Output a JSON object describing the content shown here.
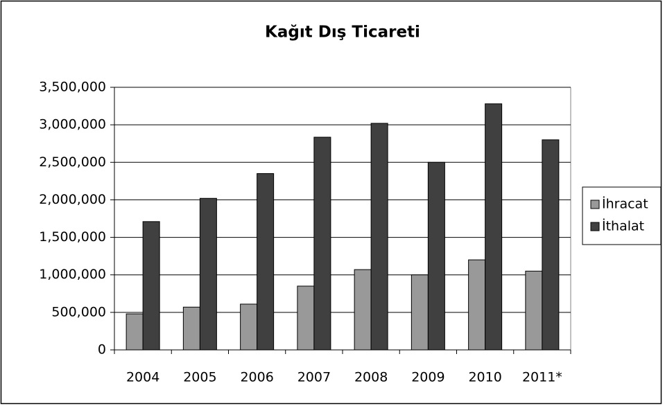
{
  "chart_data": {
    "type": "bar",
    "title": "Kağıt Dış Ticareti",
    "categories": [
      "2004",
      "2005",
      "2006",
      "2007",
      "2008",
      "2009",
      "2010",
      "2011*"
    ],
    "series": [
      {
        "name": "İhracat",
        "color": "#999999",
        "values": [
          480000,
          570000,
          610000,
          850000,
          1070000,
          1000000,
          1200000,
          1050000
        ]
      },
      {
        "name": "İthalat",
        "color": "#404040",
        "values": [
          1710000,
          2020000,
          2350000,
          2835000,
          3020000,
          2500000,
          3280000,
          2800000
        ]
      }
    ],
    "ylim": [
      0,
      3500000
    ],
    "yticks": [
      {
        "value": 0,
        "label": "0"
      },
      {
        "value": 500000,
        "label": "500,000"
      },
      {
        "value": 1000000,
        "label": "1,000,000"
      },
      {
        "value": 1500000,
        "label": "1,500,000"
      },
      {
        "value": 2000000,
        "label": "2,000,000"
      },
      {
        "value": 2500000,
        "label": "2,500,000"
      },
      {
        "value": 3000000,
        "label": "3,000,000"
      },
      {
        "value": 3500000,
        "label": "3,500,000"
      }
    ],
    "grid": true,
    "legend": "right"
  }
}
